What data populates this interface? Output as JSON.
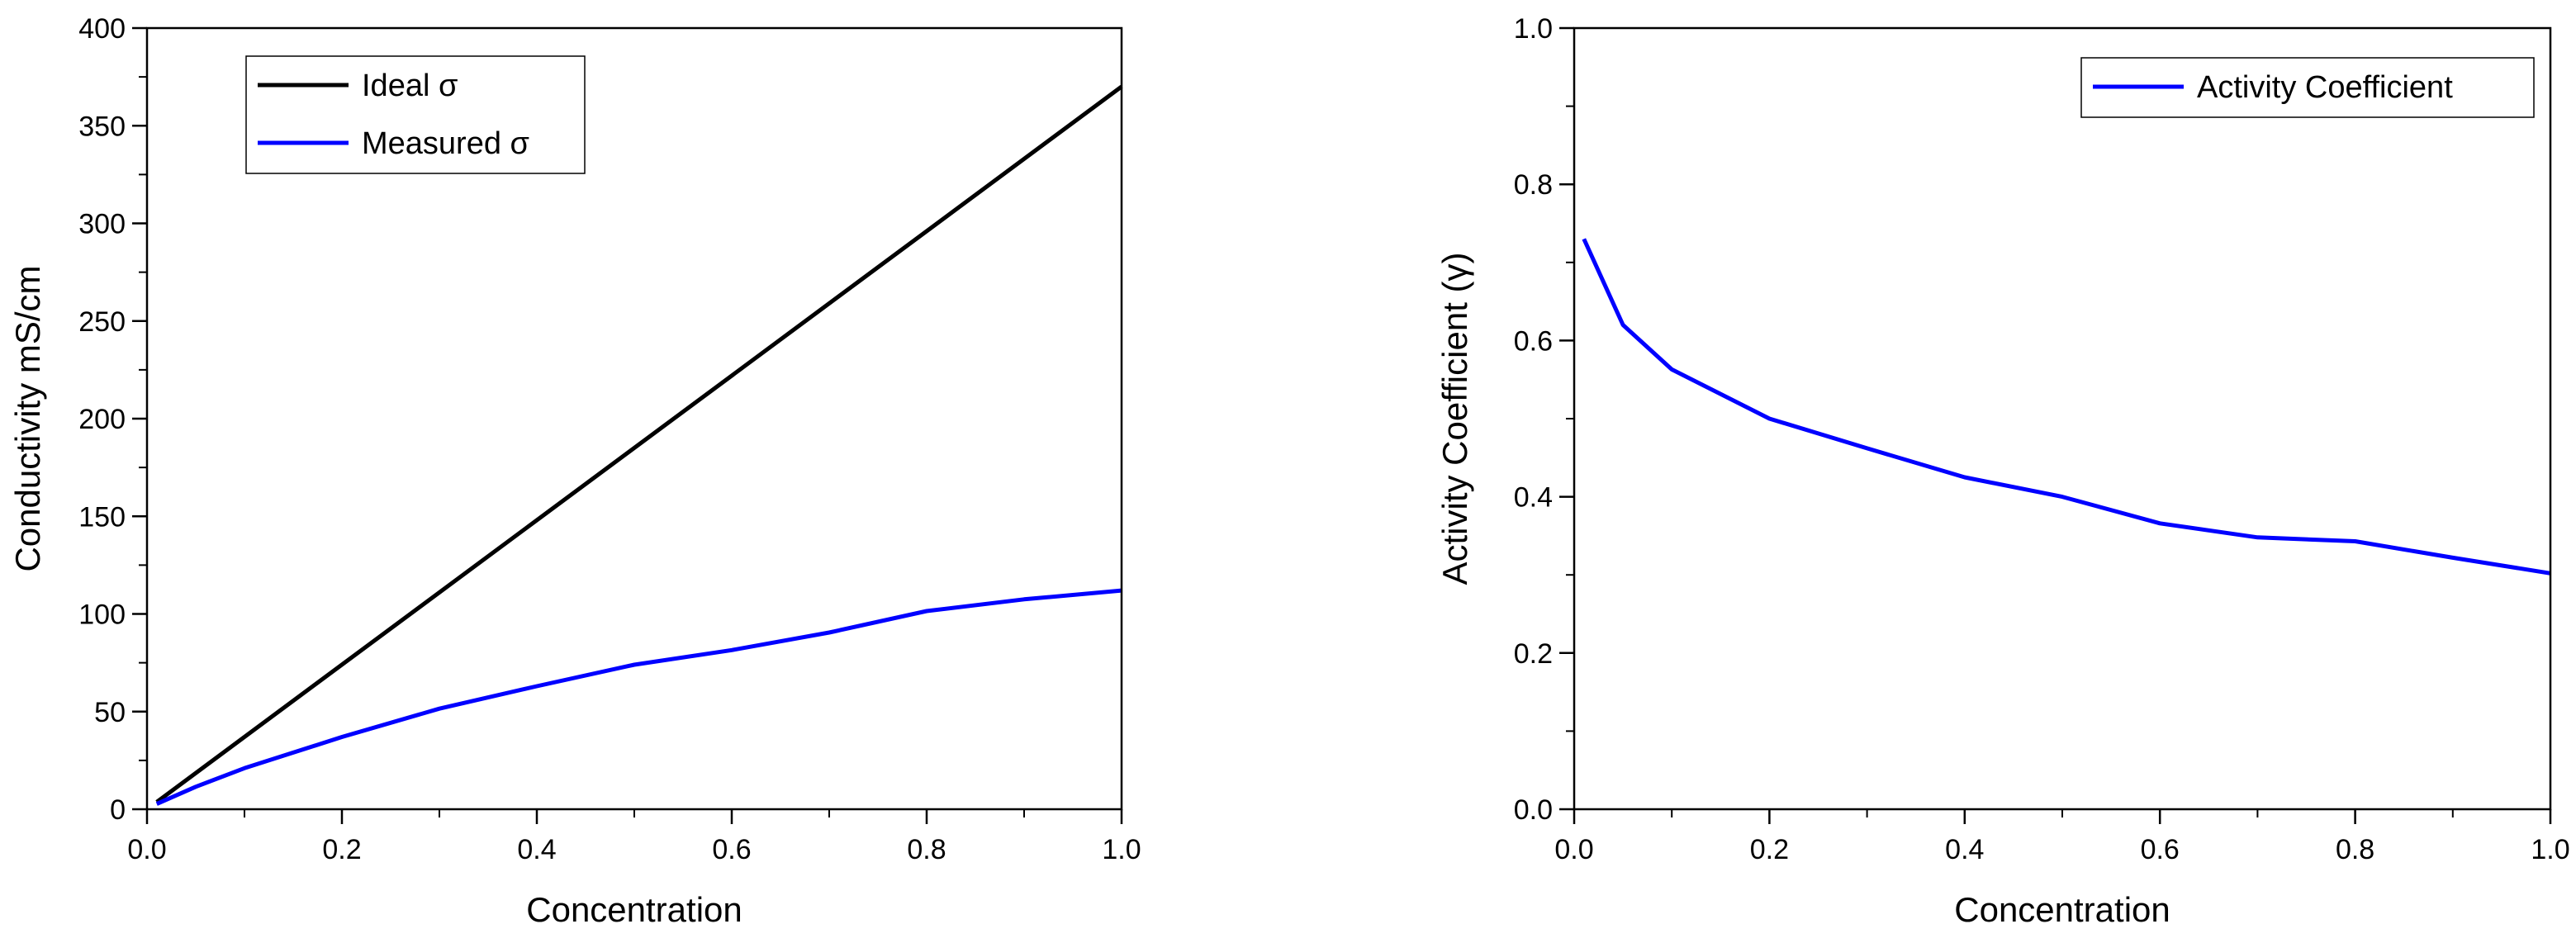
{
  "chart_data": [
    {
      "type": "line",
      "xlabel": "Concentration",
      "ylabel": "Conductivity mS/cm",
      "xlim": [
        0.0,
        1.0
      ],
      "ylim": [
        0,
        400
      ],
      "xticks": [
        "0.0",
        "0.2",
        "0.4",
        "0.6",
        "0.8",
        "1.0"
      ],
      "yticks": [
        "0",
        "50",
        "100",
        "150",
        "200",
        "250",
        "300",
        "350",
        "400"
      ],
      "legend_position": "top-left",
      "grid": false,
      "series": [
        {
          "name": "Ideal σ",
          "color": "#000000",
          "x": [
            0.01,
            1.0
          ],
          "y": [
            3.7,
            370
          ]
        },
        {
          "name": "Measured σ",
          "color": "#0000ff",
          "x": [
            0.01,
            0.05,
            0.1,
            0.2,
            0.3,
            0.4,
            0.5,
            0.6,
            0.7,
            0.8,
            0.9,
            1.0
          ],
          "y": [
            2.7,
            11.5,
            21,
            37,
            51.5,
            63,
            74,
            81.5,
            90.5,
            101.5,
            107.5,
            112
          ]
        }
      ]
    },
    {
      "type": "line",
      "xlabel": "Concentration",
      "ylabel": "Activity Coefficient (γ)",
      "xlim": [
        0.0,
        1.0
      ],
      "ylim": [
        0.0,
        1.0
      ],
      "xticks": [
        "0.0",
        "0.2",
        "0.4",
        "0.6",
        "0.8",
        "1.0"
      ],
      "yticks": [
        "0.0",
        "0.2",
        "0.4",
        "0.6",
        "0.8",
        "1.0"
      ],
      "legend_position": "top-right",
      "grid": false,
      "series": [
        {
          "name": "Activity Coefficient",
          "color": "#0000ff",
          "x": [
            0.01,
            0.05,
            0.1,
            0.2,
            0.3,
            0.4,
            0.5,
            0.6,
            0.7,
            0.8,
            0.9,
            1.0
          ],
          "y": [
            0.73,
            0.62,
            0.563,
            0.5,
            0.462,
            0.425,
            0.4,
            0.366,
            0.348,
            0.343,
            0.322,
            0.302
          ]
        }
      ]
    }
  ]
}
